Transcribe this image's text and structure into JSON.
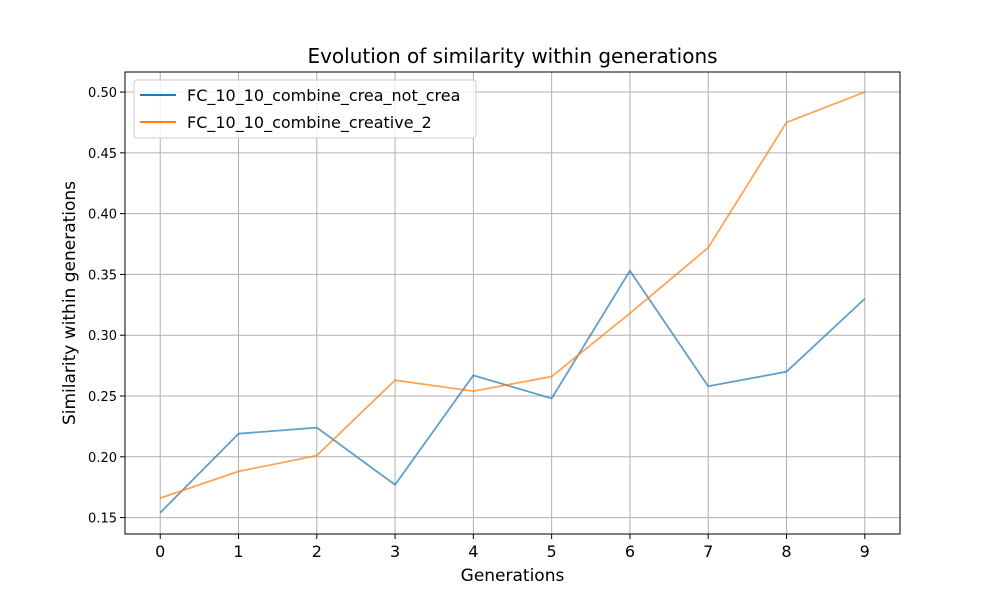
{
  "chart_data": {
    "type": "line",
    "title": "Evolution of similarity within generations",
    "xlabel": "Generations",
    "ylabel": "Similarity within generations",
    "x": [
      0,
      1,
      2,
      3,
      4,
      5,
      6,
      7,
      8,
      9
    ],
    "xlim": [
      -0.45,
      9.45
    ],
    "ylim": [
      0.1365,
      0.5165
    ],
    "yticks": [
      0.15,
      0.2,
      0.25,
      0.3,
      0.35,
      0.4,
      0.45,
      0.5
    ],
    "ytick_labels": [
      "0.15",
      "0.20",
      "0.25",
      "0.30",
      "0.35",
      "0.40",
      "0.45",
      "0.50"
    ],
    "xtick_labels": [
      "0",
      "1",
      "2",
      "3",
      "4",
      "5",
      "6",
      "7",
      "8",
      "9"
    ],
    "grid": true,
    "legend_position": "upper-left",
    "series": [
      {
        "name": "FC_10_10_combine_crea_not_crea",
        "color": "#1f77b4",
        "values": [
          0.154,
          0.219,
          0.224,
          0.177,
          0.267,
          0.248,
          0.353,
          0.258,
          0.27,
          0.33
        ]
      },
      {
        "name": "FC_10_10_combine_creative_2",
        "color": "#ff7f0e",
        "values": [
          0.166,
          0.188,
          0.201,
          0.263,
          0.254,
          0.266,
          0.318,
          0.372,
          0.475,
          0.5
        ]
      }
    ]
  }
}
